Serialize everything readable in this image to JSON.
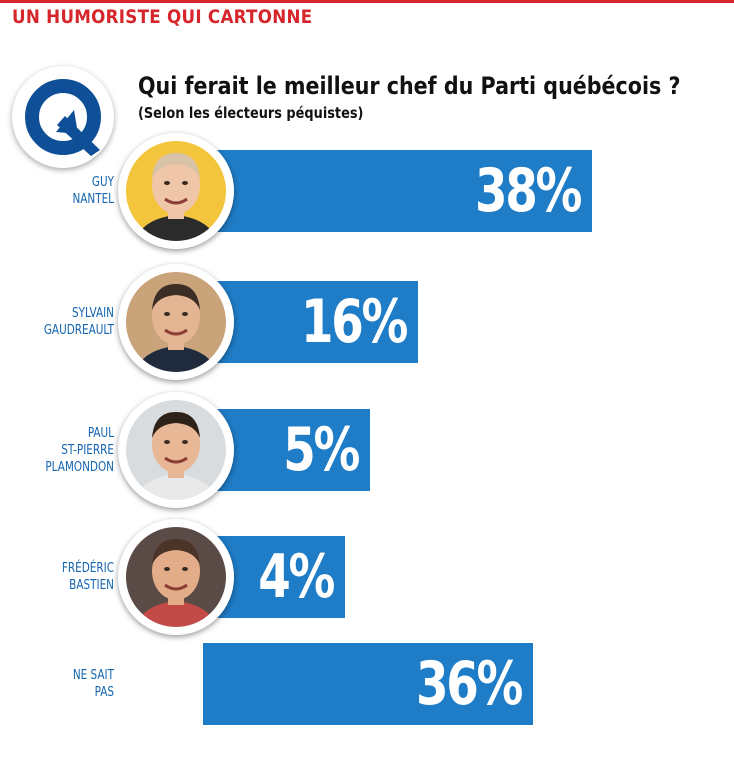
{
  "header": {
    "kicker": "UN HUMORISTE QUI CARTONNE",
    "kicker_color": "#d7262b",
    "logo_icon": "q-arrow-logo-icon",
    "logo_color": "#0e4f97"
  },
  "chart_data": {
    "type": "bar",
    "orientation": "horizontal",
    "title": "Qui ferait le meilleur chef du Parti québécois ?",
    "subtitle": "(Selon les électeurs péquistes)",
    "unit": "%",
    "bar_color": "#1f7cc6",
    "label_color": "#1565b0",
    "categories": [
      "GUY\nNANTEL",
      "SYLVAIN\nGAUDREAULT",
      "PAUL\nST-PIERRE\nPLAMONDON",
      "FRÉDÉRIC\nBASTIEN",
      "NE SAIT\nPAS"
    ],
    "values": [
      38,
      16,
      5,
      4,
      36
    ],
    "value_labels": [
      "38%",
      "16%",
      "5%",
      "4%",
      "36%"
    ],
    "portraits": [
      {
        "icon": "guy-nantel-portrait",
        "bg": "#f2c53d",
        "skin": "#f0c6a8",
        "hair": "#d8c2a8",
        "shirt": "#2b2b2b"
      },
      {
        "icon": "sylvain-gaudreault-portrait",
        "bg": "#c9a37a",
        "skin": "#e4b592",
        "hair": "#3b2e27",
        "shirt": "#1f2a3c"
      },
      {
        "icon": "paul-st-pierre-plamondon-portrait",
        "bg": "#d9dcdf",
        "skin": "#e8b896",
        "hair": "#2e2218",
        "shirt": "#e9e9e9"
      },
      {
        "icon": "frederic-bastien-portrait",
        "bg": "#5b4b46",
        "skin": "#e3ad8a",
        "hair": "#4a3528",
        "shirt": "#c24b48"
      },
      null
    ]
  }
}
